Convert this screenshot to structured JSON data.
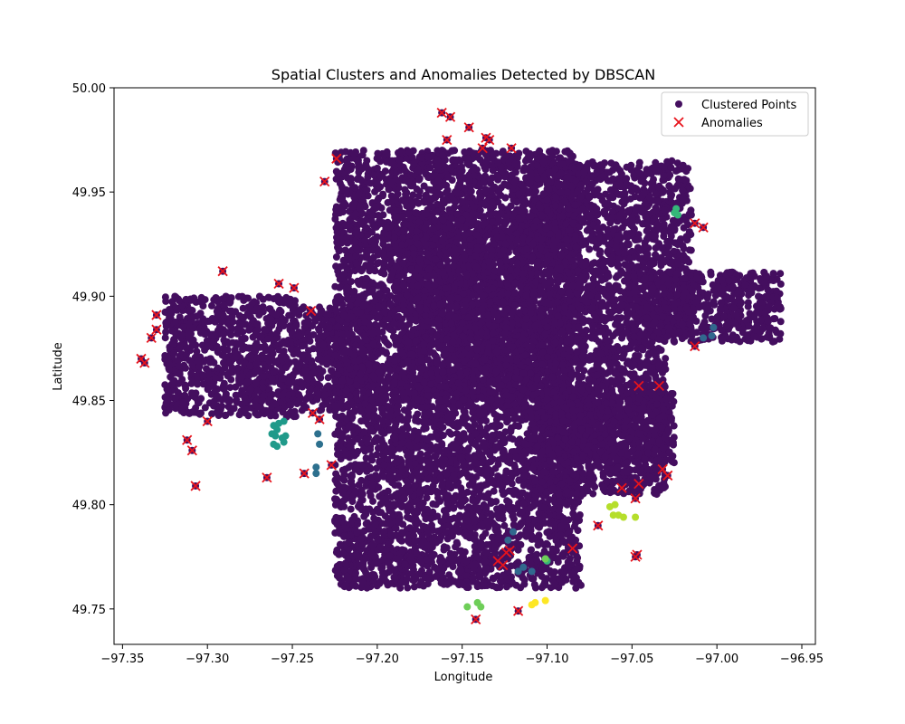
{
  "chart_data": {
    "type": "scatter",
    "title": "Spatial Clusters and Anomalies Detected by DBSCAN",
    "xlabel": "Longitude",
    "ylabel": "Latitude",
    "xlim": [
      -97.355,
      -96.942
    ],
    "ylim": [
      49.733,
      50.0
    ],
    "x_ticks": [
      -97.35,
      -97.3,
      -97.25,
      -97.2,
      -97.15,
      -97.1,
      -97.05,
      -97.0,
      -96.95
    ],
    "x_tick_labels": [
      "−97.35",
      "−97.30",
      "−97.25",
      "−97.20",
      "−97.15",
      "−97.10",
      "−97.05",
      "−97.00",
      "−96.95"
    ],
    "y_ticks": [
      49.75,
      49.8,
      49.85,
      49.9,
      49.95,
      50.0
    ],
    "y_tick_labels": [
      "49.75",
      "49.80",
      "49.85",
      "49.90",
      "49.95",
      "50.00"
    ],
    "grid": false,
    "legend_position": "top-right",
    "legend": [
      {
        "label": "Clustered Points",
        "marker": "circle",
        "color": "#440e5f"
      },
      {
        "label": "Anomalies",
        "marker": "x",
        "color": "#e8141c"
      }
    ],
    "colors": {
      "main_cluster": "#440e5f",
      "anomaly": "#e8141c",
      "axes": "#000000"
    },
    "series": [
      {
        "name": "Clustered Points",
        "marker": "circle",
        "main_cluster_regions": [
          {
            "x_range": [
              -97.325,
              -97.248
            ],
            "y_range": [
              49.842,
              49.9
            ]
          },
          {
            "x_range": [
              -97.248,
              -97.2
            ],
            "y_range": [
              49.845,
              49.895
            ]
          },
          {
            "x_range": [
              -97.225,
              -97.08
            ],
            "y_range": [
              49.76,
              49.97
            ]
          },
          {
            "x_range": [
              -97.19,
              -97.11
            ],
            "y_range": [
              49.85,
              49.94
            ]
          },
          {
            "x_range": [
              -97.11,
              -97.015
            ],
            "y_range": [
              49.88,
              49.965
            ]
          },
          {
            "x_range": [
              -97.11,
              -97.03
            ],
            "y_range": [
              49.805,
              49.88
            ]
          },
          {
            "x_range": [
              -97.05,
              -96.962
            ],
            "y_range": [
              49.878,
              49.912
            ]
          },
          {
            "x_range": [
              -97.1,
              -97.025
            ],
            "y_range": [
              49.82,
              49.855
            ]
          }
        ],
        "small_clusters": [
          {
            "color": "#1f9a8a",
            "points": [
              [
                -97.261,
                49.838
              ],
              [
                -97.259,
                49.836
              ],
              [
                -97.262,
                49.834
              ],
              [
                -97.258,
                49.839
              ],
              [
                -97.255,
                49.84
              ],
              [
                -97.26,
                49.833
              ],
              [
                -97.256,
                49.832
              ],
              [
                -97.255,
                49.83
              ],
              [
                -97.259,
                49.828
              ],
              [
                -97.261,
                49.829
              ],
              [
                -97.254,
                49.833
              ]
            ]
          },
          {
            "color": "#2d708e",
            "points": [
              [
                -97.235,
                49.834
              ],
              [
                -97.234,
                49.829
              ],
              [
                -97.236,
                49.818
              ],
              [
                -97.236,
                49.815
              ]
            ]
          },
          {
            "color": "#31688e",
            "points": [
              [
                -97.123,
                49.783
              ],
              [
                -97.12,
                49.787
              ],
              [
                -97.117,
                49.768
              ],
              [
                -97.114,
                49.77
              ],
              [
                -97.109,
                49.768
              ],
              [
                -97.003,
                49.881
              ],
              [
                -97.002,
                49.885
              ],
              [
                -97.008,
                49.88
              ]
            ]
          },
          {
            "color": "#35b779",
            "points": [
              [
                -97.025,
                49.94
              ],
              [
                -97.024,
                49.942
              ],
              [
                -97.023,
                49.939
              ],
              [
                -97.101,
                49.774
              ],
              [
                -97.1,
                49.773
              ]
            ]
          },
          {
            "color": "#6ece58",
            "points": [
              [
                -97.147,
                49.751
              ],
              [
                -97.141,
                49.753
              ],
              [
                -97.139,
                49.751
              ],
              [
                -97.101,
                49.774
              ]
            ]
          },
          {
            "color": "#b5de2b",
            "points": [
              [
                -97.063,
                49.799
              ],
              [
                -97.06,
                49.8
              ],
              [
                -97.061,
                49.795
              ],
              [
                -97.058,
                49.795
              ],
              [
                -97.055,
                49.794
              ],
              [
                -97.048,
                49.794
              ]
            ]
          },
          {
            "color": "#fde725",
            "points": [
              [
                -97.109,
                49.752
              ],
              [
                -97.107,
                49.753
              ],
              [
                -97.101,
                49.754
              ]
            ]
          }
        ]
      },
      {
        "name": "Anomalies",
        "marker": "x",
        "points": [
          [
            -97.162,
            49.988
          ],
          [
            -97.157,
            49.986
          ],
          [
            -97.146,
            49.981
          ],
          [
            -97.159,
            49.975
          ],
          [
            -97.136,
            49.976
          ],
          [
            -97.134,
            49.975
          ],
          [
            -97.121,
            49.971
          ],
          [
            -97.138,
            49.971
          ],
          [
            -97.224,
            49.966
          ],
          [
            -97.231,
            49.955
          ],
          [
            -97.291,
            49.912
          ],
          [
            -97.258,
            49.906
          ],
          [
            -97.249,
            49.904
          ],
          [
            -97.239,
            49.893
          ],
          [
            -97.33,
            49.891
          ],
          [
            -97.33,
            49.884
          ],
          [
            -97.333,
            49.88
          ],
          [
            -97.339,
            49.87
          ],
          [
            -97.337,
            49.868
          ],
          [
            -97.013,
            49.935
          ],
          [
            -97.008,
            49.933
          ],
          [
            -97.013,
            49.876
          ],
          [
            -97.238,
            49.844
          ],
          [
            -97.234,
            49.841
          ],
          [
            -97.3,
            49.84
          ],
          [
            -97.312,
            49.831
          ],
          [
            -97.309,
            49.826
          ],
          [
            -97.265,
            49.813
          ],
          [
            -97.243,
            49.815
          ],
          [
            -97.227,
            49.819
          ],
          [
            -97.307,
            49.809
          ],
          [
            -97.046,
            49.857
          ],
          [
            -97.034,
            49.857
          ],
          [
            -97.032,
            49.817
          ],
          [
            -97.029,
            49.814
          ],
          [
            -97.046,
            49.81
          ],
          [
            -97.056,
            49.808
          ],
          [
            -97.048,
            49.803
          ],
          [
            -97.07,
            49.79
          ],
          [
            -97.085,
            49.779
          ],
          [
            -97.122,
            49.778
          ],
          [
            -97.124,
            49.777
          ],
          [
            -97.129,
            49.773
          ],
          [
            -97.126,
            49.771
          ],
          [
            -97.047,
            49.776
          ],
          [
            -97.048,
            49.775
          ],
          [
            -97.117,
            49.749
          ],
          [
            -97.142,
            49.745
          ]
        ]
      }
    ]
  }
}
